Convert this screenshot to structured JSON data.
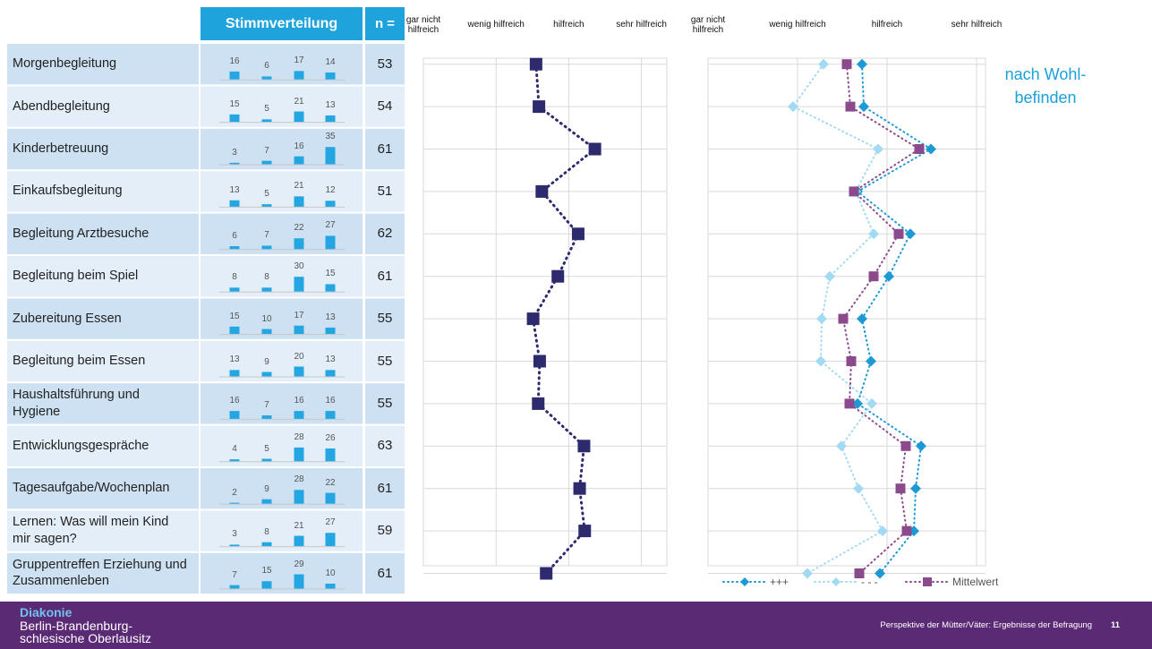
{
  "table": {
    "header": {
      "distribution": "Stimmverteilung",
      "n": "n ="
    },
    "rows": [
      {
        "counts": [
          16,
          6,
          17,
          14
        ],
        "n": 53
      },
      {
        "counts": [
          15,
          5,
          21,
          13
        ],
        "n": 54
      },
      {
        "counts": [
          3,
          7,
          16,
          35
        ],
        "n": 61
      },
      {
        "counts": [
          13,
          5,
          21,
          12
        ],
        "n": 51
      },
      {
        "counts": [
          6,
          7,
          22,
          27
        ],
        "n": 62
      },
      {
        "counts": [
          8,
          8,
          30,
          15
        ],
        "n": 61
      },
      {
        "counts": [
          15,
          10,
          17,
          13
        ],
        "n": 55
      },
      {
        "counts": [
          13,
          9,
          20,
          13
        ],
        "n": 55
      },
      {
        "counts": [
          16,
          7,
          16,
          16
        ],
        "n": 55
      },
      {
        "counts": [
          4,
          5,
          28,
          26
        ],
        "n": 63
      },
      {
        "counts": [
          2,
          9,
          28,
          22
        ],
        "n": 61
      },
      {
        "counts": [
          3,
          8,
          21,
          27
        ],
        "n": 59
      },
      {
        "counts": [
          7,
          15,
          29,
          10
        ],
        "n": 61
      }
    ]
  },
  "chart_data": [
    {
      "type": "line",
      "categories": [
        "Morgenbegleitung",
        "Abendbegleitung",
        "Kinderbetreuung",
        "Einkaufsbegleitung",
        "Begleitung Arztbesuche",
        "Begleitung beim Spiel",
        "Zubereitung Essen",
        "Begleitung beim Essen",
        "Haushaltsführung und Hygiene",
        "Entwicklungsgespräche",
        "Tagesaufgabe/Wochenplan",
        "Lernen: Was will mein Kind mir sagen?",
        "Gruppentreffen Erziehung und Zusammenleben"
      ],
      "values": [
        2.55,
        2.59,
        3.36,
        2.63,
        3.13,
        2.85,
        2.51,
        2.6,
        2.58,
        3.21,
        3.15,
        3.22,
        2.69
      ],
      "color": "#2e2a6e",
      "marker": "square",
      "xlim": [
        1,
        4.35
      ],
      "xticks": [
        {
          "value": 1,
          "label": "gar nicht hilfreich"
        },
        {
          "value": 2,
          "label": "wenig hilfreich"
        },
        {
          "value": 3,
          "label": "hilfreich"
        },
        {
          "value": 4,
          "label": "sehr hilfreich"
        }
      ],
      "grid": true
    },
    {
      "type": "line",
      "annotation": "nach Wohl-befinden",
      "series": [
        {
          "name": "+++",
          "color": "#1d9ad6",
          "marker": "diamond",
          "values": [
            2.72,
            2.74,
            3.49,
            2.67,
            3.26,
            3.02,
            2.72,
            2.82,
            2.67,
            3.38,
            3.32,
            3.3,
            2.92
          ]
        },
        {
          "name": "- - -",
          "color": "#a3daf3",
          "marker": "diamond",
          "values": [
            2.29,
            1.95,
            2.9,
            2.65,
            2.85,
            2.36,
            2.27,
            2.26,
            2.83,
            2.49,
            2.68,
            2.95,
            2.11
          ]
        },
        {
          "name": "Mittelwert",
          "color": "#8b4a8c",
          "marker": "square",
          "values": [
            2.55,
            2.59,
            3.36,
            2.63,
            3.13,
            2.85,
            2.51,
            2.6,
            2.58,
            3.21,
            3.15,
            3.22,
            2.69
          ]
        }
      ],
      "xlim": [
        1,
        4.1
      ],
      "xticks": [
        {
          "value": 1,
          "label": "gar nicht hilfreich"
        },
        {
          "value": 2,
          "label": "wenig hilfreich"
        },
        {
          "value": 3,
          "label": "hilfreich"
        },
        {
          "value": 4,
          "label": "sehr hilfreich"
        }
      ],
      "grid": true,
      "legend": "bottom"
    }
  ],
  "footer": {
    "logo": "Diakonie",
    "org": "Berlin-Brandenburg-schlesische Oberlausitz",
    "caption": "Perspektive der Mütter/Väter: Ergebnisse der Befragung",
    "page": 11
  }
}
